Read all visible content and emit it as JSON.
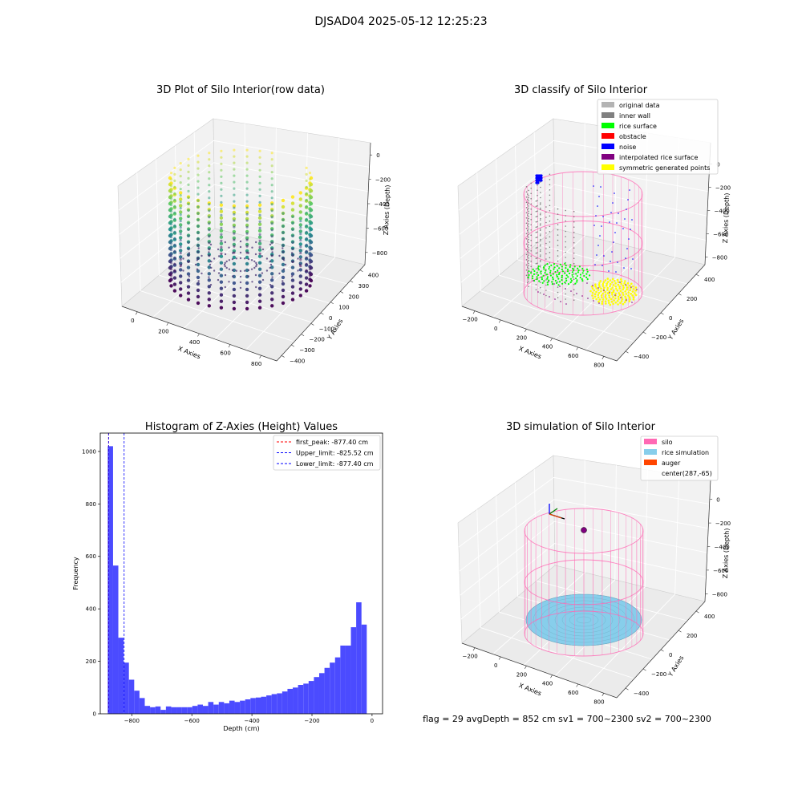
{
  "figure": {
    "suptitle": "DJSAD04 2025-05-12 12:25:23",
    "status_line": "flag = 29  avgDepth = 852 cm  sv1 = 700~2300  sv2 = 700~2300"
  },
  "colors": {
    "hist_bar": "#4b4bff",
    "silo": "#ff69b4",
    "rice_sim": "#87ceeb",
    "auger": "#ff4500",
    "original": "#b3b3b3",
    "inner_wall": "#808080",
    "rice_surface": "#00ff00",
    "obstacle": "#ff0000",
    "noise": "#0000ff",
    "interp": "#800080",
    "symmetric": "#ffff00"
  },
  "chart_data": [
    {
      "type": "scatter",
      "title": "3D Plot of Silo Interior(row data)",
      "xlabel": "X Axies",
      "ylabel": "Y Axies",
      "zlabel": "Z Axies (Depth)",
      "x_ticks": [
        "0",
        "200",
        "400",
        "600",
        "800"
      ],
      "y_ticks": [
        "−400",
        "−300",
        "−200",
        "−100",
        "0",
        "100",
        "200",
        "300",
        "400"
      ],
      "z_ticks": [
        "0",
        "−200",
        "−400",
        "−600",
        "−800"
      ],
      "colormap": "viridis",
      "grid": true
    },
    {
      "type": "scatter",
      "title": "3D classify of Silo Interior",
      "xlabel": "X Axies",
      "ylabel": "Y Axies",
      "zlabel": "Z Axies (Depth)",
      "x_ticks": [
        "−200",
        "0",
        "200",
        "400",
        "600",
        "800"
      ],
      "y_ticks": [
        "−400",
        "−200",
        "0",
        "200",
        "400"
      ],
      "z_ticks": [
        "0",
        "−200",
        "−400",
        "−600",
        "−800"
      ],
      "legend_position": "top-right",
      "legend": [
        {
          "label": "original data",
          "color": "#b3b3b3"
        },
        {
          "label": "inner wall",
          "color": "#808080"
        },
        {
          "label": "rice surface",
          "color": "#00ff00"
        },
        {
          "label": "obstacle",
          "color": "#ff0000"
        },
        {
          "label": "noise",
          "color": "#0000ff"
        },
        {
          "label": "interpolated rice surface",
          "color": "#800080"
        },
        {
          "label": "symmetric generated points",
          "color": "#ffff00"
        }
      ],
      "grid": true
    },
    {
      "type": "bar",
      "title": "Histogram of Z-Axies (Height) Values",
      "xlabel": "Depth (cm)",
      "ylabel": "Frequency",
      "xlim": [
        -905,
        35
      ],
      "ylim": [
        0,
        1070
      ],
      "x_ticks": [
        -800,
        -600,
        -400,
        -200,
        0
      ],
      "y_ticks": [
        0,
        200,
        400,
        600,
        800,
        1000
      ],
      "bin_start": -880,
      "bin_width": 17.6,
      "values": [
        1020,
        565,
        290,
        195,
        130,
        88,
        60,
        30,
        25,
        28,
        15,
        28,
        25,
        25,
        25,
        25,
        30,
        35,
        30,
        45,
        35,
        45,
        40,
        50,
        45,
        50,
        55,
        60,
        62,
        65,
        70,
        75,
        78,
        85,
        95,
        100,
        110,
        115,
        125,
        140,
        155,
        175,
        195,
        215,
        260,
        260,
        330,
        425,
        340
      ],
      "lines": [
        {
          "label": "first_peak: -877.40 cm",
          "x": -877.4,
          "color": "#ff0000"
        },
        {
          "label": "Upper_limit: -825.52 cm",
          "x": -825.52,
          "color": "#0000ff"
        },
        {
          "label": "Lower_limit: -877.40 cm",
          "x": -877.4,
          "color": "#0000ff"
        }
      ],
      "legend_position": "top-right",
      "grid": false
    },
    {
      "type": "scatter",
      "title": "3D simulation of Silo Interior",
      "xlabel": "X Axies",
      "ylabel": "Y Axies",
      "zlabel": "Z Axies (Depth)",
      "x_ticks": [
        "−200",
        "0",
        "200",
        "400",
        "600",
        "800"
      ],
      "y_ticks": [
        "−400",
        "−200",
        "0",
        "200",
        "400"
      ],
      "z_ticks": [
        "0",
        "−200",
        "−400",
        "−600",
        "−800"
      ],
      "legend_position": "top-right",
      "legend": [
        {
          "label": "silo",
          "color": "#ff69b4"
        },
        {
          "label": "rice simulation",
          "color": "#87ceeb"
        },
        {
          "label": "auger",
          "color": "#ff4500"
        },
        {
          "label": "center(287,-65)",
          "color": ""
        }
      ],
      "grid": true
    }
  ]
}
